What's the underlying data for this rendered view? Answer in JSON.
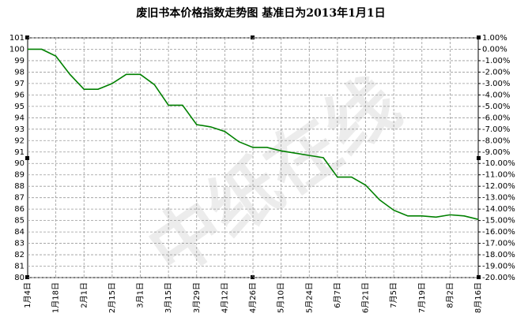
{
  "chart_data": {
    "type": "line",
    "title": "废旧书本价格指数走势图 基准日为2013年1月1日",
    "watermark": "中纸在线",
    "categories": [
      "1月4日",
      null,
      "1月18日",
      null,
      "2月1日",
      null,
      "2月15日",
      null,
      "3月1日",
      null,
      "3月15日",
      null,
      "3月29日",
      null,
      "4月12日",
      null,
      "4月26日",
      null,
      "5月10日",
      null,
      "5月24日",
      null,
      "6月7日",
      null,
      "6月21日",
      null,
      "7月5日",
      null,
      "7月19日",
      null,
      "8月2日",
      null,
      "8月16日"
    ],
    "series": [
      {
        "name": "废旧书本价格指数",
        "color": "#008000",
        "values": [
          100,
          100,
          99.4,
          97.8,
          96.5,
          96.5,
          97,
          97.8,
          97.8,
          96.9,
          95.1,
          95.1,
          93.4,
          93.2,
          92.8,
          91.9,
          91.4,
          91.4,
          91.1,
          90.9,
          90.7,
          90.5,
          88.8,
          88.8,
          88.1,
          86.8,
          85.9,
          85.4,
          85.4,
          85.3,
          85.5,
          85.4,
          85.1
        ]
      }
    ],
    "ylim": [
      80,
      101
    ],
    "yticks": [
      80,
      81,
      82,
      83,
      84,
      85,
      86,
      87,
      88,
      89,
      90,
      91,
      92,
      93,
      94,
      95,
      96,
      97,
      98,
      99,
      100,
      101
    ],
    "y2lim": [
      -20,
      1
    ],
    "y2ticks": [
      {
        "value": -20,
        "label": "-20.00%"
      },
      {
        "value": -19,
        "label": "-19.00%"
      },
      {
        "value": -18,
        "label": "-18.00%"
      },
      {
        "value": -17,
        "label": "-17.00%"
      },
      {
        "value": -16,
        "label": "-16.00%"
      },
      {
        "value": -15,
        "label": "-15.00%"
      },
      {
        "value": -14,
        "label": "-14.00%"
      },
      {
        "value": -13,
        "label": "-13.00%"
      },
      {
        "value": -12,
        "label": "-12.00%"
      },
      {
        "value": -11,
        "label": "-11.00%"
      },
      {
        "value": -10,
        "label": "-10.00%"
      },
      {
        "value": -9,
        "label": "-9.00%"
      },
      {
        "value": -8,
        "label": "-8.00%"
      },
      {
        "value": -7,
        "label": "-7.00%"
      },
      {
        "value": -6,
        "label": "-6.00%"
      },
      {
        "value": -5,
        "label": "-5.00%"
      },
      {
        "value": -4,
        "label": "-4.00%"
      },
      {
        "value": -3,
        "label": "-3.00%"
      },
      {
        "value": -2,
        "label": "-2.00%"
      },
      {
        "value": -1,
        "label": "-1.00%"
      },
      {
        "value": 0,
        "label": "0.00%"
      },
      {
        "value": 1,
        "label": "1.00%"
      }
    ],
    "grid": true
  }
}
